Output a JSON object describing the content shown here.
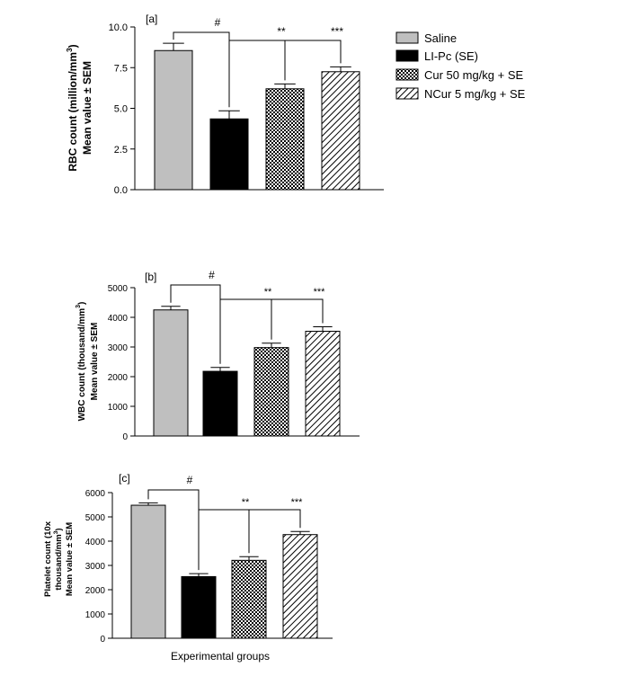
{
  "chart_data": [
    {
      "type": "bar",
      "panel_label": "[a]",
      "title": "",
      "ylabel_line1": "RBC count (million/mm",
      "ylabel_sup": "3",
      "ylabel_line1_end": ")",
      "ylabel_line2": "Mean value ± SEM",
      "xlabel": "",
      "categories": [
        "Saline",
        "LI-Pc (SE)",
        "Cur 50 mg/kg + SE",
        "NCur 5 mg/kg + SE"
      ],
      "values": [
        8.55,
        4.35,
        6.2,
        7.25
      ],
      "errors": [
        0.45,
        0.5,
        0.3,
        0.3
      ],
      "ylim": [
        0,
        10
      ],
      "yticks": [
        0,
        2.5,
        5,
        7.5,
        10
      ],
      "ytick_labels": [
        "0.0",
        "2.5",
        "5.0",
        "7.5",
        "10.0"
      ],
      "significance": {
        "hash": "#",
        "double": "**",
        "triple": "***"
      }
    },
    {
      "type": "bar",
      "panel_label": "[b]",
      "title": "",
      "ylabel_line1": "WBC count (thousand/mm",
      "ylabel_sup": "3",
      "ylabel_line1_end": ")",
      "ylabel_line2": "Mean value ± SEM",
      "xlabel": "",
      "categories": [
        "Saline",
        "LI-Pc (SE)",
        "Cur 50 mg/kg + SE",
        "NCur 5 mg/kg + SE"
      ],
      "values": [
        4250,
        2180,
        2980,
        3530
      ],
      "errors": [
        120,
        130,
        150,
        150
      ],
      "ylim": [
        0,
        5000
      ],
      "yticks": [
        0,
        1000,
        2000,
        3000,
        4000,
        5000
      ],
      "ytick_labels": [
        "0",
        "1000",
        "2000",
        "3000",
        "4000",
        "5000"
      ],
      "significance": {
        "hash": "#",
        "double": "**",
        "triple": "***"
      }
    },
    {
      "type": "bar",
      "panel_label": "[c]",
      "title": "",
      "ylabel_line1": "Platelet count (10x",
      "ylabel_line2_main": "thousand/mm",
      "ylabel_sup": "3",
      "ylabel_line2_end": ")",
      "ylabel_line3": "Mean value ± SEM",
      "xlabel": "Experimental groups",
      "categories": [
        "Saline",
        "LI-Pc (SE)",
        "Cur 50 mg/kg + SE",
        "NCur 5 mg/kg + SE"
      ],
      "values": [
        5480,
        2540,
        3210,
        4270
      ],
      "errors": [
        100,
        120,
        150,
        130
      ],
      "ylim": [
        0,
        6000
      ],
      "yticks": [
        0,
        1000,
        2000,
        3000,
        4000,
        5000,
        6000
      ],
      "ytick_labels": [
        "0",
        "1000",
        "2000",
        "3000",
        "4000",
        "5000",
        "6000"
      ],
      "significance": {
        "hash": "#",
        "double": "**",
        "triple": "***"
      }
    }
  ],
  "legend": {
    "position": "top-right",
    "entries": [
      {
        "label": "Saline",
        "fill": "light-gray"
      },
      {
        "label": "LI-Pc (SE)",
        "fill": "black"
      },
      {
        "label": "Cur 50 mg/kg + SE",
        "fill": "crosshatch"
      },
      {
        "label": "NCur 5 mg/kg + SE",
        "fill": "diagonal-stripes"
      }
    ]
  },
  "colors": {
    "saline": "#bfbfbf",
    "lipc": "#000000",
    "axis": "#000000"
  }
}
